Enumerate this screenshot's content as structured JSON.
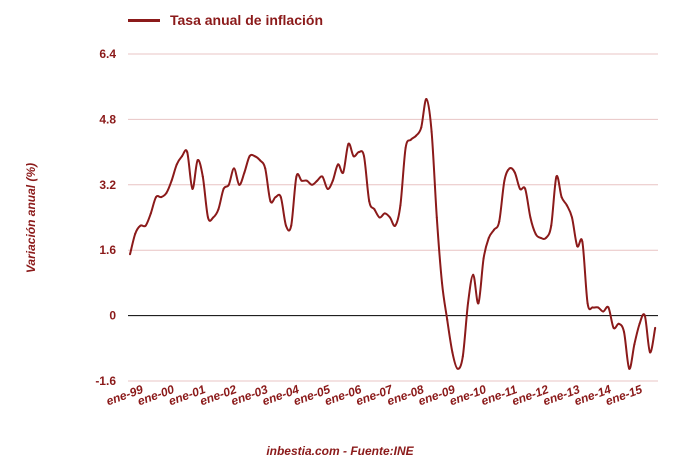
{
  "legend": {
    "label": "Tasa anual de inflación",
    "color": "#8b1a1a"
  },
  "source_note": "inbestia.com - Fuente:INE",
  "chart_data": {
    "type": "line",
    "title": "",
    "xlabel": "",
    "ylabel": "Variación anual (%)",
    "ylim": [
      -1.6,
      6.4
    ],
    "yticks": [
      -1.6,
      0,
      1.6,
      3.2,
      4.8,
      6.4
    ],
    "ytick_labels": [
      "-1.6",
      "0",
      "1.6",
      "3.2",
      "4.8",
      "6.4"
    ],
    "xticks": [
      "ene-99",
      "ene-00",
      "ene-01",
      "ene-02",
      "ene-03",
      "ene-04",
      "ene-05",
      "ene-06",
      "ene-07",
      "ene-08",
      "ene-09",
      "ene-10",
      "ene-11",
      "ene-12",
      "ene-13",
      "ene-14",
      "ene-15"
    ],
    "grid": true,
    "legend_position": "top-left",
    "series": [
      {
        "name": "Tasa anual de inflación",
        "color": "#8b1a1a",
        "x": [
          "1999-01",
          "1999-03",
          "1999-05",
          "1999-07",
          "1999-09",
          "1999-11",
          "2000-01",
          "2000-03",
          "2000-05",
          "2000-07",
          "2000-09",
          "2000-11",
          "2001-01",
          "2001-03",
          "2001-05",
          "2001-07",
          "2001-09",
          "2001-11",
          "2002-01",
          "2002-03",
          "2002-05",
          "2002-07",
          "2002-09",
          "2002-11",
          "2003-01",
          "2003-03",
          "2003-05",
          "2003-07",
          "2003-09",
          "2003-11",
          "2004-01",
          "2004-03",
          "2004-05",
          "2004-07",
          "2004-09",
          "2004-11",
          "2005-01",
          "2005-03",
          "2005-05",
          "2005-07",
          "2005-09",
          "2005-11",
          "2006-01",
          "2006-03",
          "2006-05",
          "2006-07",
          "2006-09",
          "2006-11",
          "2007-01",
          "2007-03",
          "2007-05",
          "2007-07",
          "2007-09",
          "2007-11",
          "2008-01",
          "2008-03",
          "2008-05",
          "2008-07",
          "2008-09",
          "2008-11",
          "2009-01",
          "2009-03",
          "2009-05",
          "2009-07",
          "2009-09",
          "2009-11",
          "2010-01",
          "2010-03",
          "2010-05",
          "2010-07",
          "2010-09",
          "2010-11",
          "2011-01",
          "2011-03",
          "2011-05",
          "2011-07",
          "2011-09",
          "2011-11",
          "2012-01",
          "2012-03",
          "2012-05",
          "2012-07",
          "2012-09",
          "2012-11",
          "2013-01",
          "2013-03",
          "2013-05",
          "2013-07",
          "2013-09",
          "2013-11",
          "2014-01",
          "2014-03",
          "2014-05",
          "2014-07",
          "2014-09",
          "2014-11",
          "2015-01",
          "2015-03",
          "2015-05",
          "2015-07",
          "2015-09",
          "2015-11"
        ],
        "values": [
          1.5,
          2.0,
          2.2,
          2.2,
          2.5,
          2.9,
          2.9,
          3.0,
          3.3,
          3.7,
          3.9,
          4.0,
          3.1,
          3.8,
          3.4,
          2.4,
          2.4,
          2.6,
          3.1,
          3.2,
          3.6,
          3.2,
          3.5,
          3.9,
          3.9,
          3.8,
          3.6,
          2.8,
          2.9,
          2.9,
          2.2,
          2.2,
          3.4,
          3.3,
          3.3,
          3.2,
          3.3,
          3.4,
          3.1,
          3.3,
          3.7,
          3.5,
          4.2,
          3.9,
          4.0,
          3.9,
          2.8,
          2.6,
          2.4,
          2.5,
          2.4,
          2.2,
          2.7,
          4.1,
          4.3,
          4.4,
          4.6,
          5.3,
          4.5,
          2.4,
          0.8,
          -0.1,
          -0.9,
          -1.3,
          -1.0,
          0.3,
          1.0,
          0.3,
          1.4,
          1.9,
          2.1,
          2.3,
          3.3,
          3.6,
          3.5,
          3.1,
          3.1,
          2.4,
          2.0,
          1.9,
          1.9,
          2.2,
          3.4,
          2.9,
          2.7,
          2.4,
          1.7,
          1.8,
          0.3,
          0.2,
          0.2,
          0.1,
          0.2,
          -0.3,
          -0.2,
          -0.4,
          -1.3,
          -0.7,
          -0.2,
          0.0,
          -0.9,
          -0.3
        ]
      }
    ]
  }
}
